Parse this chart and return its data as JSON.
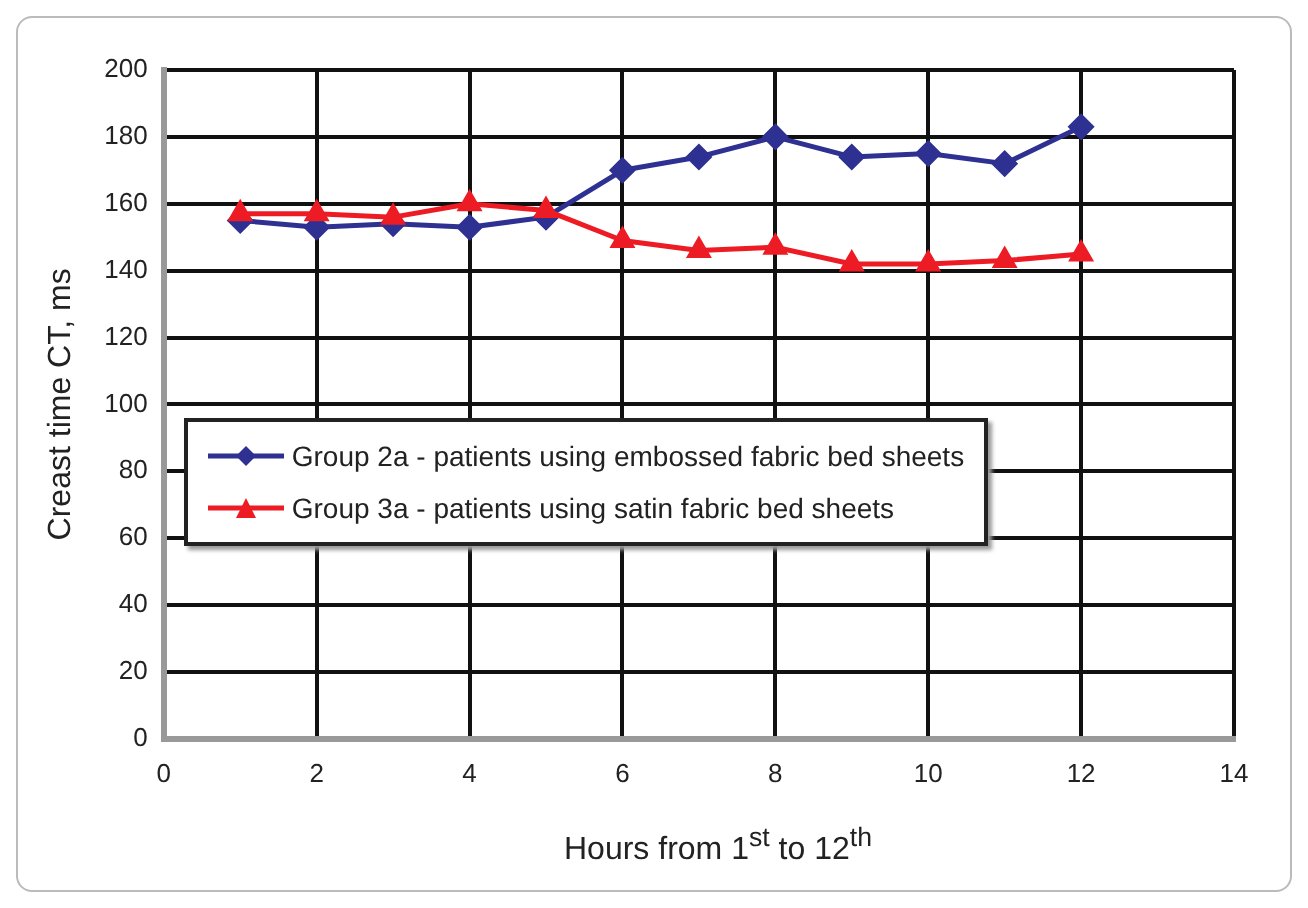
{
  "chart_data": {
    "type": "line",
    "xlabel": "Hours from 1$^{st}$ to 12$^{th}$",
    "ylabel": "Creast time CT, ms",
    "x": [
      1,
      2,
      3,
      4,
      5,
      6,
      7,
      8,
      9,
      10,
      11,
      12
    ],
    "series": [
      {
        "name": "Group 2a - patients using embossed fabric bed sheets",
        "color": "#2e3192",
        "marker": "diamond",
        "values": [
          155,
          153,
          154,
          153,
          156,
          170,
          174,
          180,
          174,
          175,
          172,
          183
        ]
      },
      {
        "name": "Group 3a - patients using satin fabric bed sheets",
        "color": "#ed1c24",
        "marker": "triangle",
        "values": [
          157,
          157,
          156,
          160,
          158,
          149,
          146,
          147,
          142,
          142,
          143,
          145
        ]
      }
    ],
    "xlim": [
      0,
      14
    ],
    "xticks": [
      0,
      2,
      4,
      6,
      8,
      10,
      12,
      14
    ],
    "ylim": [
      0,
      200
    ],
    "yticks": [
      0,
      20,
      40,
      60,
      80,
      100,
      120,
      140,
      160,
      180,
      200
    ],
    "grid": true,
    "legend": "left",
    "line_style": "solid"
  }
}
